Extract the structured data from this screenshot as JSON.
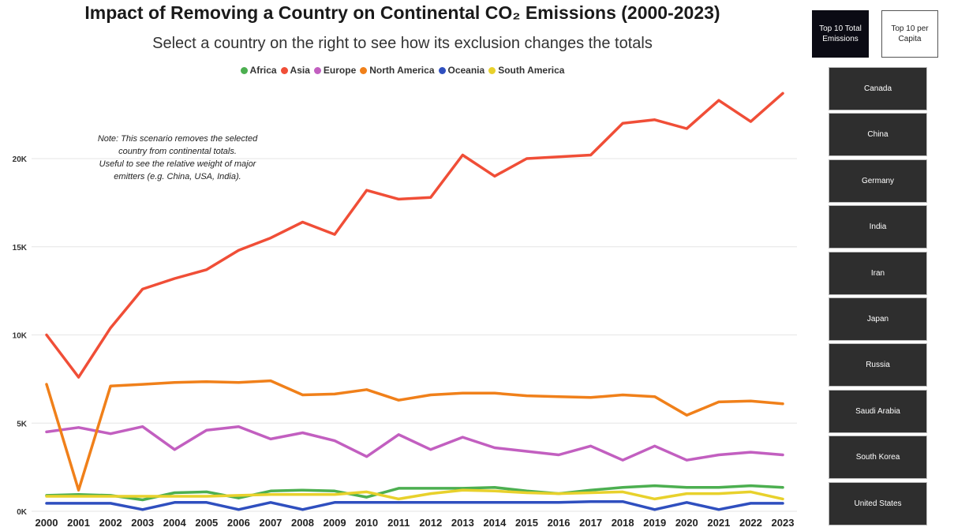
{
  "title": "Impact of Removing a Country on Continental CO₂ Emissions (2000-2023)",
  "subtitle": "Select a country on the right to see how its exclusion changes the totals",
  "note": "Note: This scenario removes the selected\ncountry from continental totals.\nUseful to see the relative weight of major\nemitters (e.g. China, USA, India).",
  "toggles": {
    "active": "Top 10 Total\nEmissions",
    "inactive": "Top 10 per\nCapita"
  },
  "countries": [
    "Canada",
    "China",
    "Germany",
    "India",
    "Iran",
    "Japan",
    "Russia",
    "Saudi Arabia",
    "South Korea",
    "United States"
  ],
  "chart_data": {
    "type": "line",
    "title": "Impact of Removing a Country on Continental CO₂ Emissions (2000-2023)",
    "xlabel": "",
    "ylabel": "",
    "ylim": [
      0,
      25000
    ],
    "yticks": [
      0,
      5000,
      10000,
      15000,
      20000
    ],
    "ytick_labels": [
      "0K",
      "5K",
      "10K",
      "15K",
      "20K"
    ],
    "grid": true,
    "legend_position": "top-center",
    "x": [
      "2000",
      "2001",
      "2002",
      "2003",
      "2004",
      "2005",
      "2006",
      "2007",
      "2008",
      "2009",
      "2010",
      "2011",
      "2012",
      "2013",
      "2014",
      "2015",
      "2016",
      "2017",
      "2018",
      "2019",
      "2020",
      "2021",
      "2022",
      "2023"
    ],
    "series": [
      {
        "name": "Africa",
        "color": "#4caf50",
        "values": [
          900,
          950,
          900,
          650,
          1050,
          1100,
          750,
          1150,
          1200,
          1150,
          800,
          1300,
          1300,
          1300,
          1350,
          1150,
          1000,
          1200,
          1350,
          1450,
          1350,
          1350,
          1450,
          1350
        ]
      },
      {
        "name": "Asia",
        "color": "#f04e37",
        "values": [
          10000,
          7600,
          10400,
          12600,
          13200,
          13700,
          14800,
          15500,
          16400,
          15700,
          18200,
          17700,
          17800,
          20200,
          19000,
          20000,
          20100,
          20200,
          22000,
          22200,
          21700,
          23300,
          22100,
          23700
        ]
      },
      {
        "name": "Europe",
        "color": "#c25fc0",
        "values": [
          4500,
          4750,
          4400,
          4800,
          3500,
          4600,
          4800,
          4100,
          4450,
          4000,
          3100,
          4350,
          3500,
          4200,
          3600,
          3400,
          3200,
          3700,
          2900,
          3700,
          2900,
          3200,
          3350,
          3200
        ]
      },
      {
        "name": "North America",
        "color": "#f0801a",
        "values": [
          7200,
          1200,
          7100,
          7200,
          7300,
          7350,
          7300,
          7400,
          6600,
          6650,
          6900,
          6300,
          6600,
          6700,
          6700,
          6550,
          6500,
          6450,
          6600,
          6500,
          5450,
          6200,
          6250,
          6100
        ]
      },
      {
        "name": "Oceania",
        "color": "#2f4fbf",
        "values": [
          450,
          450,
          450,
          100,
          500,
          500,
          100,
          500,
          100,
          500,
          500,
          500,
          500,
          500,
          500,
          500,
          500,
          550,
          550,
          100,
          500,
          100,
          450,
          450
        ]
      },
      {
        "name": "South America",
        "color": "#e8d12c",
        "values": [
          850,
          850,
          850,
          850,
          850,
          850,
          900,
          950,
          950,
          950,
          1100,
          700,
          1000,
          1200,
          1150,
          1050,
          1000,
          1050,
          1100,
          700,
          1000,
          1000,
          1100,
          700
        ]
      }
    ]
  }
}
